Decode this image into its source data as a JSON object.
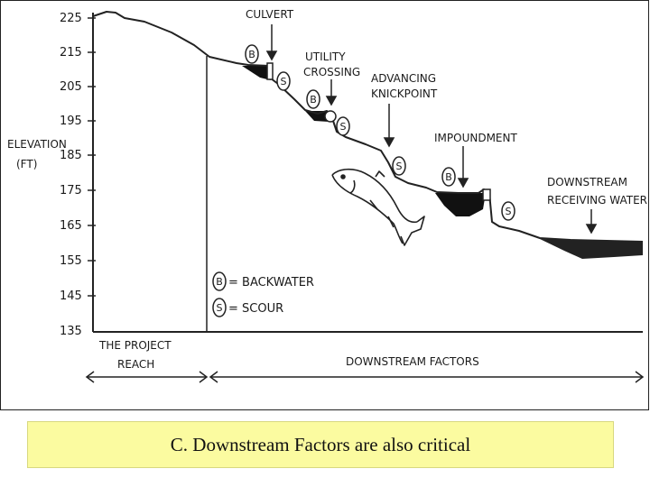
{
  "diagram": {
    "axis": {
      "label_line1": "ELEVATION",
      "label_line2": "(FT)",
      "ticks": [
        "225",
        "215",
        "205",
        "195",
        "185",
        "175",
        "165",
        "155",
        "145",
        "135"
      ]
    },
    "annotations": {
      "culvert": "CULVERT",
      "utility_line1": "UTILITY",
      "utility_line2": "CROSSING",
      "knickpoint_line1": "ADVANCING",
      "knickpoint_line2": "KNICKPOINT",
      "impoundment": "IMPOUNDMENT",
      "receiving_line1": "DOWNSTREAM",
      "receiving_line2": "RECEIVING WATER"
    },
    "legend": {
      "b_symbol": "B",
      "b_text": "= BACKWATER",
      "s_symbol": "S",
      "s_text": "= SCOUR"
    },
    "markers": {
      "backwater": "B",
      "scour": "S"
    },
    "bottom_labels": {
      "project_line1": "THE PROJECT",
      "project_line2": "REACH",
      "downstream": "DOWNSTREAM FACTORS"
    }
  },
  "caption": "C. Downstream Factors are also critical"
}
